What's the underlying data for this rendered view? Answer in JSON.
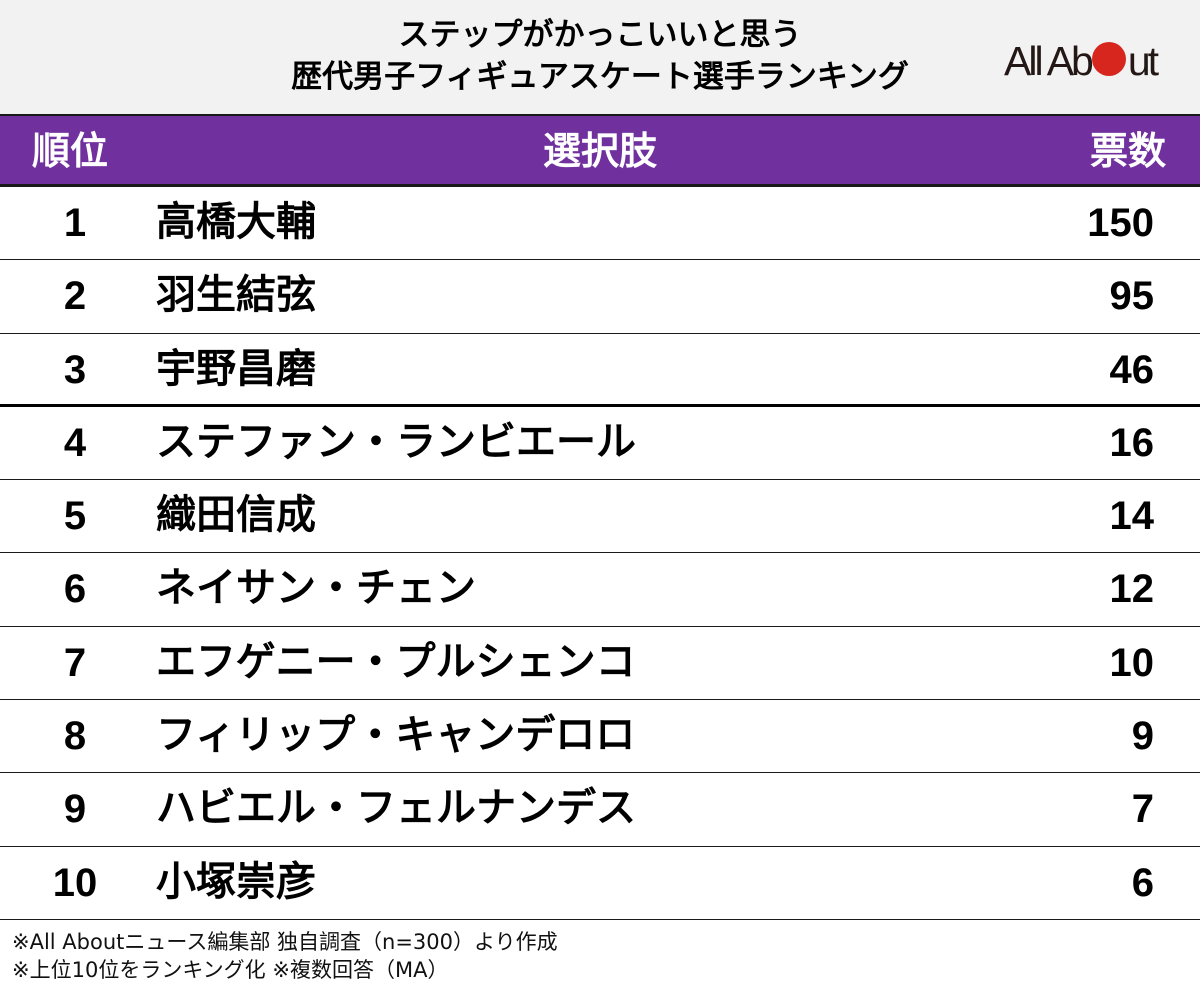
{
  "title": {
    "line1": "ステップがかっこいいと思う",
    "line2": "歴代男子フィギュアスケート選手ランキング"
  },
  "logo": {
    "before_dot": "All Ab",
    "after_dot": "ut",
    "dot_color": "#d7261e"
  },
  "colors": {
    "header_bg": "#70309e",
    "title_bg": "#f2f2f2"
  },
  "table": {
    "headers": {
      "rank": "順位",
      "name": "選択肢",
      "votes": "票数"
    },
    "rows": [
      {
        "rank": "1",
        "name": "高橋大輔",
        "votes": "150"
      },
      {
        "rank": "2",
        "name": "羽生結弦",
        "votes": "95"
      },
      {
        "rank": "3",
        "name": "宇野昌磨",
        "votes": "46"
      },
      {
        "rank": "4",
        "name": "ステファン・ランビエール",
        "votes": "16"
      },
      {
        "rank": "5",
        "name": "織田信成",
        "votes": "14"
      },
      {
        "rank": "6",
        "name": "ネイサン・チェン",
        "votes": "12"
      },
      {
        "rank": "7",
        "name": "エフゲニー・プルシェンコ",
        "votes": "10"
      },
      {
        "rank": "8",
        "name": "フィリップ・キャンデロロ",
        "votes": "9"
      },
      {
        "rank": "9",
        "name": "ハビエル・フェルナンデス",
        "votes": "7"
      },
      {
        "rank": "10",
        "name": "小塚崇彦",
        "votes": "6"
      }
    ]
  },
  "footer": {
    "note1": "※All Aboutニュース編集部 独自調査（n=300）より作成",
    "note2": "※上位10位をランキング化 ※複数回答（MA）"
  }
}
